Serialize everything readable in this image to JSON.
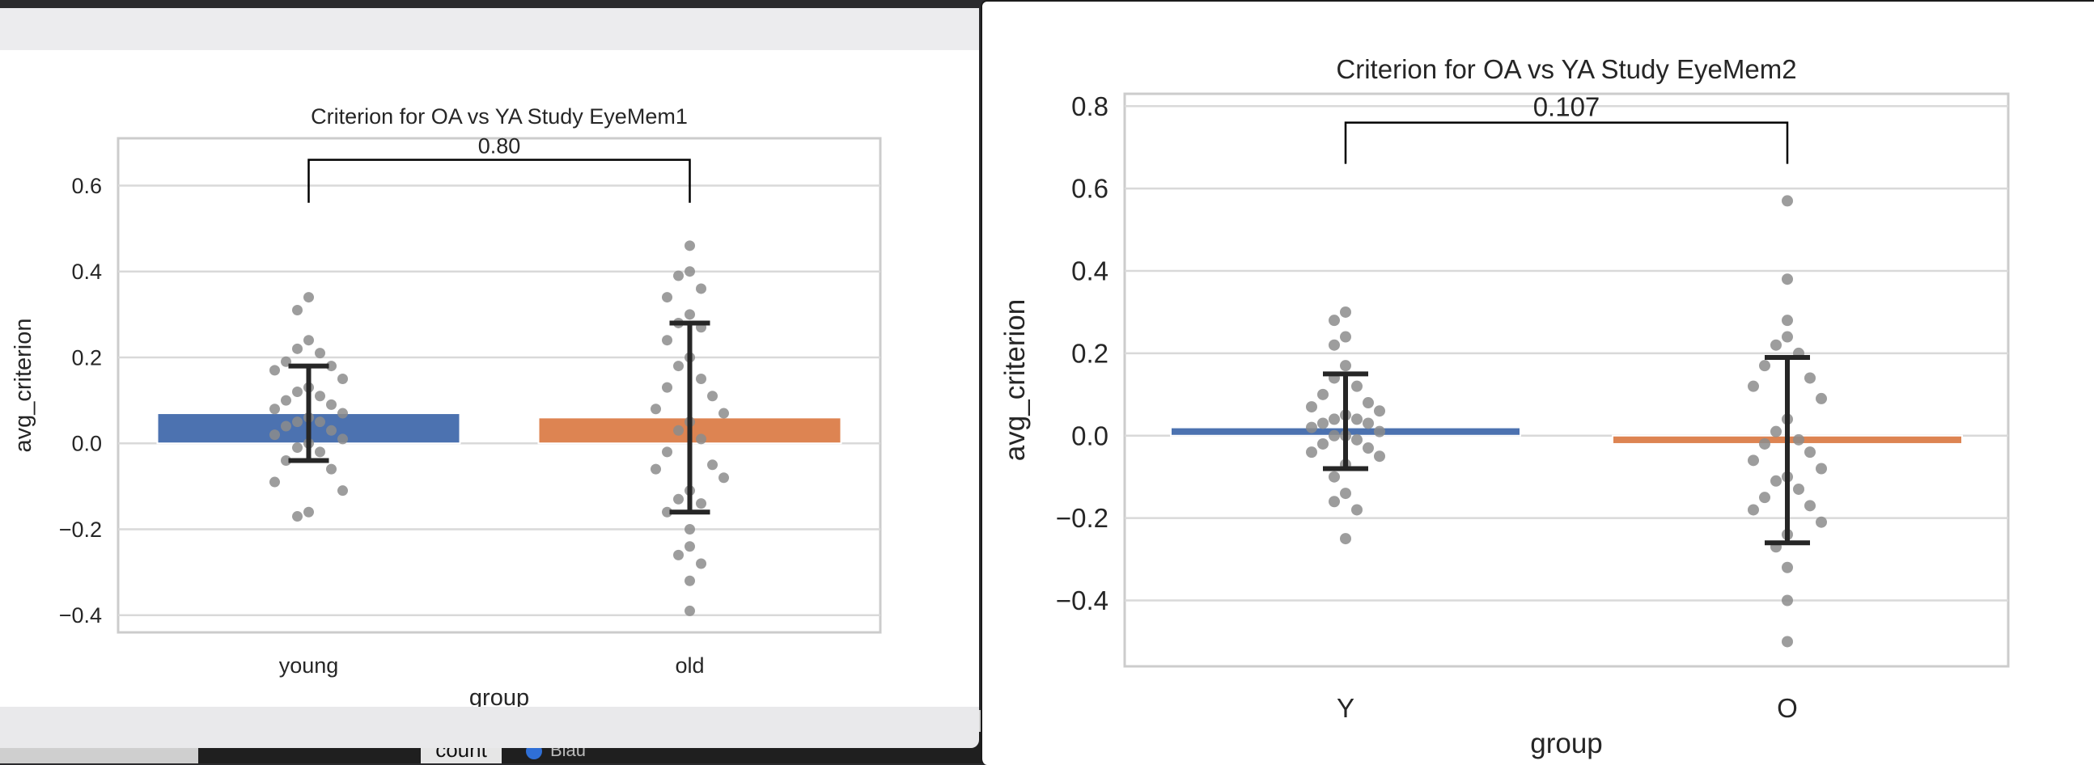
{
  "background": {
    "count_label": "count",
    "legend_fragment": "Blau"
  },
  "colors": {
    "young_bar": "#4c72b0",
    "old_bar": "#dd8452",
    "points": "#8c8c8c",
    "errorbar": "#262626",
    "grid": "#d9d9d9",
    "frame": "#cccccc"
  },
  "chart_data": [
    {
      "type": "bar",
      "title": "Criterion for OA vs YA Study EyeMem1",
      "xlabel": "group",
      "ylabel": "avg_criterion",
      "categories": [
        "young",
        "old"
      ],
      "values": [
        0.07,
        0.06
      ],
      "error_bars": [
        [
          -0.04,
          0.18
        ],
        [
          -0.16,
          0.28
        ]
      ],
      "ylim": [
        -0.44,
        0.71
      ],
      "yticks": [
        0.6,
        0.4,
        0.2,
        0.0,
        -0.2,
        -0.4
      ],
      "ytick_labels": [
        "0.6",
        "0.4",
        "0.2",
        "0.0",
        "−0.2",
        "−0.4"
      ],
      "grid": true,
      "significance": {
        "label": "0.80",
        "between": [
          "young",
          "old"
        ],
        "line_y": 0.66,
        "tick_bottom": 0.56
      },
      "points": [
        [
          0.34,
          0.31,
          0.24,
          0.22,
          0.21,
          0.19,
          0.18,
          0.17,
          0.15,
          0.13,
          0.12,
          0.11,
          0.1,
          0.09,
          0.08,
          0.07,
          0.06,
          0.05,
          0.05,
          0.04,
          0.03,
          0.02,
          0.01,
          0.0,
          -0.01,
          -0.02,
          -0.04,
          -0.06,
          -0.09,
          -0.11,
          -0.16,
          -0.17
        ],
        [
          0.46,
          0.4,
          0.39,
          0.36,
          0.34,
          0.3,
          0.28,
          0.27,
          0.24,
          0.2,
          0.18,
          0.15,
          0.13,
          0.11,
          0.08,
          0.07,
          0.05,
          0.03,
          0.01,
          -0.02,
          -0.05,
          -0.06,
          -0.08,
          -0.11,
          -0.13,
          -0.14,
          -0.16,
          -0.2,
          -0.24,
          -0.26,
          -0.28,
          -0.32,
          -0.39
        ]
      ]
    },
    {
      "type": "bar",
      "title": "Criterion for OA vs YA Study EyeMem2",
      "xlabel": "group",
      "ylabel": "avg_criterion",
      "categories": [
        "Y",
        "O"
      ],
      "values": [
        0.02,
        -0.02
      ],
      "error_bars": [
        [
          -0.08,
          0.15
        ],
        [
          -0.26,
          0.19
        ]
      ],
      "ylim": [
        -0.56,
        0.83
      ],
      "yticks": [
        0.8,
        0.6,
        0.4,
        0.2,
        0.0,
        -0.2,
        -0.4
      ],
      "ytick_labels": [
        "0.8",
        "0.6",
        "0.4",
        "0.2",
        "0.0",
        "−0.2",
        "−0.4"
      ],
      "grid": true,
      "significance": {
        "label": "0.107",
        "between": [
          "Y",
          "O"
        ],
        "line_y": 0.76,
        "tick_bottom": 0.66
      },
      "points": [
        [
          0.3,
          0.28,
          0.24,
          0.22,
          0.17,
          0.14,
          0.12,
          0.1,
          0.08,
          0.07,
          0.06,
          0.05,
          0.04,
          0.04,
          0.03,
          0.03,
          0.02,
          0.01,
          0.0,
          0.0,
          -0.01,
          -0.02,
          -0.03,
          -0.04,
          -0.05,
          -0.07,
          -0.1,
          -0.14,
          -0.16,
          -0.18,
          -0.25
        ],
        [
          0.57,
          0.38,
          0.28,
          0.24,
          0.22,
          0.2,
          0.17,
          0.14,
          0.12,
          0.09,
          0.04,
          0.01,
          -0.01,
          -0.02,
          -0.04,
          -0.06,
          -0.08,
          -0.1,
          -0.11,
          -0.13,
          -0.15,
          -0.17,
          -0.18,
          -0.21,
          -0.24,
          -0.27,
          -0.32,
          -0.4,
          -0.5
        ]
      ]
    }
  ]
}
